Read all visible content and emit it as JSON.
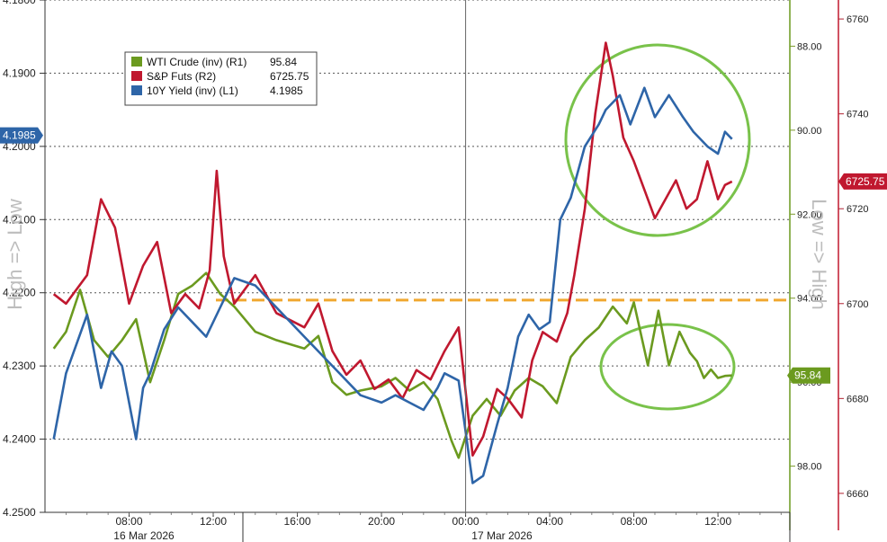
{
  "chart_data": {
    "type": "line",
    "title": "",
    "left_axis_label": "High => Low",
    "right_axis_label": "Low => High",
    "colors": {
      "wti": "#6b9a1f",
      "sp": "#c0182f",
      "yield": "#2e65a8",
      "ref_line": "#f0a830",
      "circle": "#79c24a"
    },
    "x_ticks": [
      "08:00",
      "12:00",
      "16:00",
      "20:00",
      "00:00",
      "04:00",
      "08:00",
      "12:00"
    ],
    "date_labels": [
      "16 Mar 2026",
      "17 Mar 2026"
    ],
    "left_axis": {
      "inverted": true,
      "range": [
        4.25,
        4.18
      ],
      "ticks": [
        "4.1800",
        "4.1900",
        "4.2000",
        "4.2100",
        "4.2200",
        "4.2300",
        "4.2400",
        "4.2500"
      ]
    },
    "r1_axis": {
      "inverted": true,
      "range": [
        99.1,
        86.9
      ],
      "ticks": [
        "88.00",
        "90.00",
        "92.00",
        "94.00",
        "96.00",
        "98.00"
      ]
    },
    "r2_axis": {
      "range": [
        6656,
        6764
      ],
      "ticks": [
        "6760",
        "6740",
        "6720",
        "6700",
        "6680",
        "6660"
      ]
    },
    "reference_line": {
      "axis": "left",
      "value": 4.221
    },
    "legend": [
      {
        "name": "WTI Crude (inv) (R1)",
        "value": "95.84"
      },
      {
        "name": "S&P Futs (R2)",
        "value": "6725.75"
      },
      {
        "name": "10Y Yield (inv) (L1)",
        "value": "4.1985"
      }
    ],
    "last_value_tags": {
      "yield": "4.1985",
      "sp": "6725.75",
      "wti": "95.84"
    },
    "series": [
      {
        "name": "10Y Yield (inv) (L1)",
        "axis": "left",
        "x": [
          "2026-03-16 04:25",
          "2026-03-16 05:00",
          "2026-03-16 06:00",
          "2026-03-16 06:40",
          "2026-03-16 07:10",
          "2026-03-16 07:40",
          "2026-03-16 08:20",
          "2026-03-16 08:40",
          "2026-03-16 09:00",
          "2026-03-16 09:40",
          "2026-03-16 10:20",
          "2026-03-16 11:00",
          "2026-03-16 11:40",
          "2026-03-16 12:20",
          "2026-03-16 13:00",
          "2026-03-16 14:00",
          "2026-03-16 15:00",
          "2026-03-16 16:20",
          "2026-03-16 17:00",
          "2026-03-16 17:40",
          "2026-03-16 18:20",
          "2026-03-16 19:00",
          "2026-03-16 20:00",
          "2026-03-16 20:40",
          "2026-03-16 21:20",
          "2026-03-16 22:00",
          "2026-03-16 22:40",
          "2026-03-16 23:00",
          "2026-03-16 23:40",
          "2026-03-17 00:20",
          "2026-03-17 00:50",
          "2026-03-17 01:30",
          "2026-03-17 02:00",
          "2026-03-17 02:30",
          "2026-03-17 03:00",
          "2026-03-17 03:30",
          "2026-03-17 04:00",
          "2026-03-17 04:30",
          "2026-03-17 05:00",
          "2026-03-17 05:40",
          "2026-03-17 06:20",
          "2026-03-17 06:40",
          "2026-03-17 07:20",
          "2026-03-17 07:50",
          "2026-03-17 08:30",
          "2026-03-17 09:00",
          "2026-03-17 09:40",
          "2026-03-17 10:20",
          "2026-03-17 10:50",
          "2026-03-17 11:30",
          "2026-03-17 12:00",
          "2026-03-17 12:20",
          "2026-03-17 12:40"
        ],
        "values": [
          4.24,
          4.231,
          4.223,
          4.233,
          4.228,
          4.23,
          4.24,
          4.233,
          4.231,
          4.225,
          4.222,
          4.224,
          4.226,
          4.222,
          4.218,
          4.219,
          4.222,
          4.226,
          4.228,
          4.23,
          4.232,
          4.234,
          4.235,
          4.234,
          4.235,
          4.236,
          4.233,
          4.231,
          4.232,
          4.246,
          4.245,
          4.238,
          4.233,
          4.226,
          4.223,
          4.225,
          4.224,
          4.21,
          4.207,
          4.2,
          4.197,
          4.195,
          4.193,
          4.197,
          4.192,
          4.196,
          4.193,
          4.196,
          4.198,
          4.2,
          4.201,
          4.198,
          4.199
        ]
      },
      {
        "name": "S&P Futs (R2)",
        "axis": "r2",
        "x": [
          "2026-03-16 04:25",
          "2026-03-16 05:00",
          "2026-03-16 06:00",
          "2026-03-16 06:40",
          "2026-03-16 07:20",
          "2026-03-16 08:00",
          "2026-03-16 08:40",
          "2026-03-16 09:20",
          "2026-03-16 10:00",
          "2026-03-16 10:40",
          "2026-03-16 11:20",
          "2026-03-16 11:50",
          "2026-03-16 12:10",
          "2026-03-16 12:30",
          "2026-03-16 13:00",
          "2026-03-16 14:00",
          "2026-03-16 15:00",
          "2026-03-16 16:20",
          "2026-03-16 17:00",
          "2026-03-16 17:40",
          "2026-03-16 18:20",
          "2026-03-16 19:00",
          "2026-03-16 19:40",
          "2026-03-16 20:20",
          "2026-03-16 21:00",
          "2026-03-16 21:40",
          "2026-03-16 22:20",
          "2026-03-16 23:00",
          "2026-03-16 23:40",
          "2026-03-17 00:20",
          "2026-03-17 00:50",
          "2026-03-17 01:30",
          "2026-03-17 02:00",
          "2026-03-17 02:40",
          "2026-03-17 03:10",
          "2026-03-17 03:40",
          "2026-03-17 04:20",
          "2026-03-17 04:50",
          "2026-03-17 05:10",
          "2026-03-17 05:40",
          "2026-03-17 06:10",
          "2026-03-17 06:40",
          "2026-03-17 07:00",
          "2026-03-17 07:30",
          "2026-03-17 08:00",
          "2026-03-17 08:30",
          "2026-03-17 09:00",
          "2026-03-17 09:30",
          "2026-03-17 10:00",
          "2026-03-17 10:30",
          "2026-03-17 11:00",
          "2026-03-17 11:30",
          "2026-03-17 12:00",
          "2026-03-17 12:20",
          "2026-03-17 12:40"
        ],
        "values": [
          6702,
          6700,
          6706,
          6722,
          6716,
          6700,
          6708,
          6713,
          6698,
          6702,
          6699,
          6707,
          6728,
          6710,
          6700,
          6706,
          6698,
          6695,
          6700,
          6690,
          6685,
          6688,
          6682,
          6684,
          6680,
          6686,
          6684,
          6690,
          6695,
          6668,
          6672,
          6682,
          6680,
          6676,
          6688,
          6694,
          6692,
          6698,
          6706,
          6720,
          6740,
          6755,
          6748,
          6735,
          6730,
          6724,
          6718,
          6722,
          6726,
          6720,
          6722,
          6730,
          6722,
          6725,
          6725.75
        ]
      },
      {
        "name": "WTI Crude (inv) (R1)",
        "axis": "r1",
        "x": [
          "2026-03-16 04:25",
          "2026-03-16 05:00",
          "2026-03-16 05:40",
          "2026-03-16 06:20",
          "2026-03-16 07:00",
          "2026-03-16 07:40",
          "2026-03-16 08:20",
          "2026-03-16 09:00",
          "2026-03-16 09:40",
          "2026-03-16 10:20",
          "2026-03-16 11:00",
          "2026-03-16 11:40",
          "2026-03-16 12:20",
          "2026-03-16 13:00",
          "2026-03-16 14:00",
          "2026-03-16 15:00",
          "2026-03-16 16:20",
          "2026-03-16 17:00",
          "2026-03-16 17:40",
          "2026-03-16 18:20",
          "2026-03-16 19:00",
          "2026-03-16 20:00",
          "2026-03-16 20:40",
          "2026-03-16 21:20",
          "2026-03-16 22:00",
          "2026-03-16 22:40",
          "2026-03-16 23:20",
          "2026-03-16 23:40",
          "2026-03-17 00:20",
          "2026-03-17 01:00",
          "2026-03-17 01:40",
          "2026-03-17 02:20",
          "2026-03-17 03:00",
          "2026-03-17 03:40",
          "2026-03-17 04:20",
          "2026-03-17 05:00",
          "2026-03-17 05:40",
          "2026-03-17 06:20",
          "2026-03-17 07:00",
          "2026-03-17 07:40",
          "2026-03-17 08:00",
          "2026-03-17 08:40",
          "2026-03-17 09:10",
          "2026-03-17 09:40",
          "2026-03-17 10:10",
          "2026-03-17 10:40",
          "2026-03-17 11:00",
          "2026-03-17 11:20",
          "2026-03-17 11:40",
          "2026-03-17 12:00",
          "2026-03-17 12:20",
          "2026-03-17 12:40"
        ],
        "values": [
          95.2,
          94.8,
          93.8,
          95.0,
          95.4,
          95.0,
          94.5,
          96.0,
          95.0,
          93.9,
          93.7,
          93.4,
          93.9,
          94.2,
          94.8,
          95.0,
          95.2,
          94.9,
          96.0,
          96.3,
          96.2,
          96.1,
          95.9,
          96.2,
          96.0,
          96.4,
          97.4,
          97.8,
          96.8,
          96.4,
          96.8,
          96.2,
          95.9,
          96.1,
          96.5,
          95.4,
          95.0,
          94.7,
          94.2,
          94.6,
          94.1,
          95.6,
          94.3,
          95.6,
          94.8,
          95.3,
          95.5,
          95.9,
          95.7,
          95.9,
          95.85,
          95.84
        ]
      }
    ]
  }
}
